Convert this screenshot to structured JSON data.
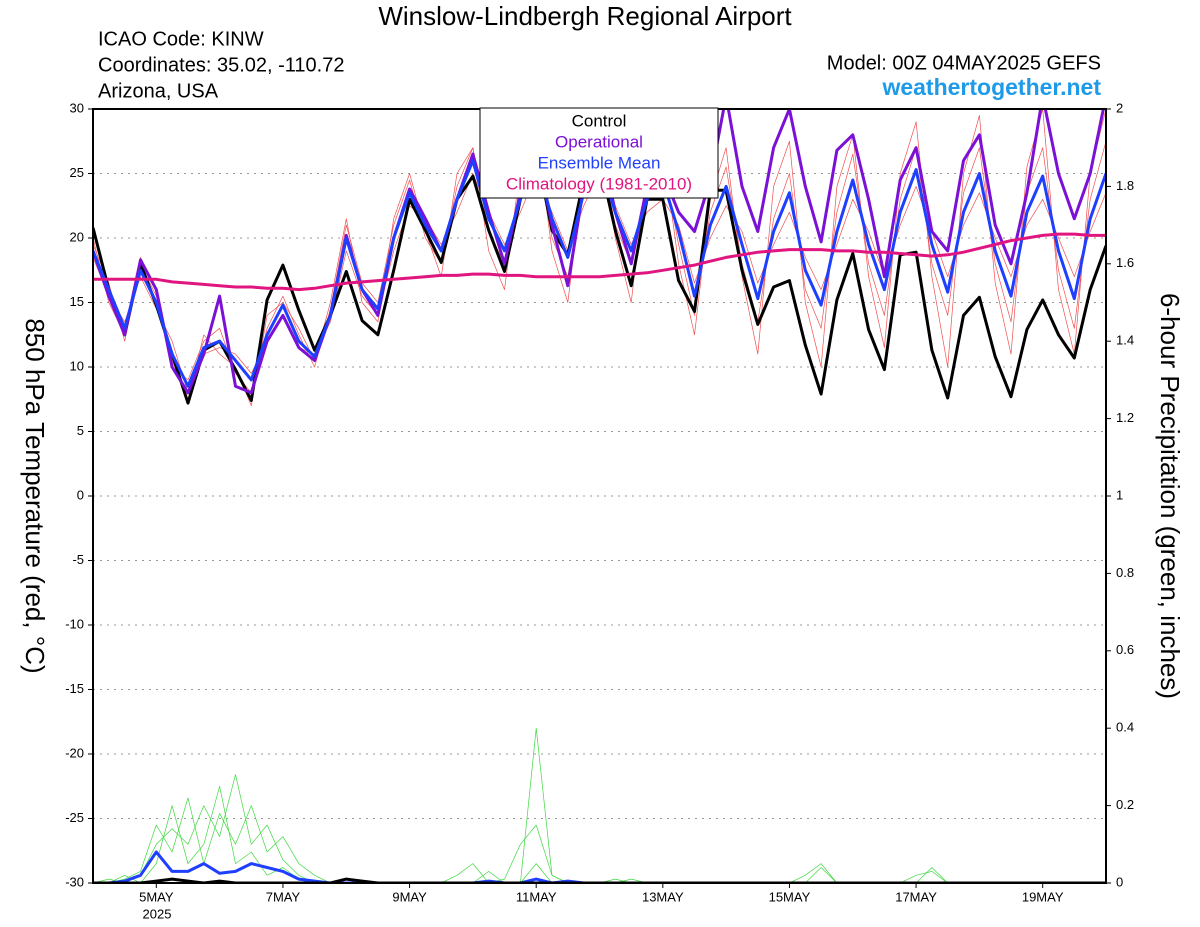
{
  "chart_data": {
    "type": "line",
    "title": "Winslow-Lindbergh Regional Airport",
    "annotations": [
      "ICAO Code: KINW",
      "Coordinates: 35.02, -110.72",
      "Arizona, USA"
    ],
    "model": "Model: 00Z 04MAY2025 GEFS",
    "site": "weathertogether.net",
    "site_color": "#1e9be8",
    "ylabel": "850 hPa Temperature (red, °C)",
    "y2label": "6-hour Precipitation (green, inches)",
    "xlabel_year": "2025",
    "categories": [
      null,
      null,
      null,
      null,
      "5MAY",
      null,
      null,
      null,
      null,
      null,
      null,
      null,
      "7MAY",
      null,
      null,
      null,
      null,
      null,
      null,
      null,
      "9MAY",
      null,
      null,
      null,
      null,
      null,
      null,
      null,
      "11MAY",
      null,
      null,
      null,
      null,
      null,
      null,
      null,
      "13MAY",
      null,
      null,
      null,
      null,
      null,
      null,
      null,
      "15MAY",
      null,
      null,
      null,
      null,
      null,
      null,
      null,
      "17MAY",
      null,
      null,
      null,
      null,
      null,
      null,
      null,
      "19MAY",
      null,
      null,
      null,
      null
    ],
    "ylim": [
      -30,
      30
    ],
    "yticks": [
      -30,
      -25,
      -20,
      -15,
      -10,
      -5,
      0,
      5,
      10,
      15,
      20,
      25,
      30
    ],
    "y2lim": [
      0,
      2
    ],
    "y2ticks": [
      0,
      0.2,
      0.4,
      0.6,
      0.8,
      1,
      1.2,
      1.4,
      1.6,
      1.8,
      2
    ],
    "grid": true,
    "legend": "top",
    "series": [
      {
        "color": "#f05050",
        "linewidth": 0.7,
        "values": [
          19.5,
          16.5,
          12,
          18,
          15.5,
          10,
          9,
          12,
          13,
          9.5,
          8,
          13,
          15.5,
          12.5,
          10,
          14.5,
          21,
          16.5,
          15,
          21,
          24.5,
          20,
          18,
          24,
          27,
          20.5,
          18,
          24,
          27.5,
          20,
          17,
          24,
          27,
          21,
          18,
          24,
          26,
          19.5,
          14,
          22,
          25.5,
          18,
          13.5,
          21.5,
          25,
          16,
          13,
          22,
          26.5,
          18,
          14,
          23,
          27,
          18,
          14,
          23.5,
          27,
          18,
          13.5,
          23.5,
          27,
          17.5,
          13,
          23,
          27.5
        ]
      },
      {
        "color": "#f05050",
        "linewidth": 0.7,
        "values": [
          18.5,
          15.5,
          13.5,
          17,
          14.5,
          12,
          8,
          11,
          11.5,
          11,
          9.5,
          12,
          14,
          11.5,
          11,
          13.5,
          19,
          15.5,
          14,
          19,
          22.5,
          21.5,
          19.5,
          22,
          25,
          22,
          19.5,
          22,
          25,
          22,
          19,
          22.5,
          25,
          22.5,
          19.5,
          22,
          23,
          21,
          16.5,
          20,
          22.5,
          20.5,
          16.5,
          19.5,
          22,
          18.5,
          16,
          19.5,
          23,
          20.5,
          17,
          21,
          24,
          20.5,
          17,
          21,
          23.5,
          20,
          17,
          21,
          23,
          20,
          17,
          20.5,
          23.5
        ]
      },
      {
        "color": "#f05050",
        "linewidth": 0.7,
        "values": [
          20,
          15,
          12.5,
          18.5,
          16,
          10.5,
          7.5,
          12.5,
          11,
          10,
          7,
          14,
          15,
          13,
          10.5,
          15,
          21.5,
          15,
          13.5,
          21.5,
          25,
          20.5,
          17,
          25,
          27,
          19,
          16,
          25.5,
          28.5,
          19,
          15,
          25,
          28.5,
          20,
          15,
          25.5,
          27,
          18,
          12.5,
          23,
          27,
          17,
          11,
          24,
          27.5,
          15,
          10,
          24,
          28,
          17,
          11.5,
          25,
          29,
          17,
          10,
          25,
          29.5,
          16.5,
          11,
          25.5,
          30,
          16,
          11,
          25,
          30
        ]
      },
      {
        "color": "#40d840",
        "linewidth": 0.7,
        "axis": "y2",
        "values": [
          0,
          0,
          0.02,
          0,
          0.05,
          0.2,
          0.05,
          0.1,
          0.25,
          0.05,
          0.08,
          0.02,
          0.04,
          0.01,
          0,
          0,
          0.01,
          0,
          0,
          0,
          0,
          0,
          0,
          0,
          0,
          0.03,
          0,
          0,
          0.4,
          0.02,
          0,
          0,
          0,
          0,
          0.01,
          0,
          0,
          0,
          0,
          0,
          0,
          0,
          0,
          0,
          0,
          0,
          0.04,
          0,
          0,
          0,
          0,
          0,
          0,
          0.04,
          0,
          0,
          0,
          0,
          0,
          0,
          0,
          0,
          0,
          0,
          0
        ]
      },
      {
        "color": "#40d840",
        "linewidth": 0.7,
        "axis": "y2",
        "values": [
          0,
          0.01,
          0,
          0.02,
          0.1,
          0.14,
          0.1,
          0.2,
          0.12,
          0.28,
          0.1,
          0.15,
          0.06,
          0.02,
          0,
          0,
          0,
          0,
          0,
          0,
          0,
          0,
          0,
          0.02,
          0.05,
          0,
          0.01,
          0.1,
          0.15,
          0.02,
          0,
          0,
          0,
          0.01,
          0,
          0,
          0,
          0,
          0,
          0,
          0,
          0,
          0,
          0,
          0,
          0.02,
          0.05,
          0,
          0,
          0,
          0,
          0,
          0,
          0,
          0,
          0,
          0,
          0,
          0,
          0,
          0,
          0,
          0,
          0,
          0
        ]
      },
      {
        "color": "#40d840",
        "linewidth": 0.7,
        "axis": "y2",
        "values": [
          0,
          0,
          0.01,
          0.03,
          0.15,
          0.08,
          0.22,
          0.05,
          0.18,
          0.1,
          0.2,
          0.08,
          0.12,
          0.05,
          0.02,
          0,
          0,
          0,
          0,
          0,
          0,
          0,
          0,
          0,
          0,
          0,
          0,
          0,
          0.05,
          0,
          0,
          0,
          0,
          0,
          0,
          0,
          0,
          0,
          0,
          0,
          0,
          0,
          0,
          0,
          0,
          0,
          0,
          0,
          0,
          0,
          0,
          0,
          0.02,
          0.03,
          0,
          0,
          0,
          0,
          0,
          0,
          0,
          0,
          0,
          0,
          0
        ]
      },
      {
        "name": "Control",
        "color": "#000000",
        "linewidth": 3,
        "values": [
          20.8,
          16,
          12.5,
          18,
          14.8,
          11,
          7.2,
          11.3,
          12,
          9.8,
          7.4,
          15.2,
          17.9,
          14.4,
          11.3,
          14,
          17.4,
          13.6,
          12.5,
          17.5,
          23,
          20.6,
          18.1,
          23,
          24.8,
          20.6,
          17.4,
          23,
          26.8,
          20.6,
          18.7,
          24.5,
          26,
          20.6,
          16.3,
          23,
          23,
          16.7,
          14.3,
          23.7,
          23.7,
          17.5,
          13.3,
          16.2,
          16.7,
          11.7,
          7.9,
          15.2,
          18.8,
          12.9,
          9.8,
          18.7,
          18.9,
          11.3,
          7.6,
          14,
          15.4,
          10.8,
          7.7,
          12.9,
          15.2,
          12.5,
          10.7,
          16,
          19.4
        ]
      },
      {
        "name": "Operational",
        "color": "#7b10d6",
        "linewidth": 3,
        "values": [
          19,
          15.5,
          12.5,
          18.3,
          16,
          10,
          8,
          11,
          15.5,
          8.5,
          8,
          12,
          14,
          11.5,
          10.5,
          14,
          20.2,
          16,
          14,
          20,
          23.8,
          21.5,
          19,
          23,
          26.5,
          22,
          18,
          23.5,
          27,
          21,
          16.3,
          24,
          28,
          22,
          18,
          24,
          25,
          22,
          20.5,
          24.5,
          31,
          24,
          20.5,
          27,
          30,
          24,
          19.7,
          26.8,
          28,
          23,
          17,
          24.5,
          27,
          20.5,
          19,
          26,
          28,
          21,
          18,
          23.5,
          31,
          25,
          21.5,
          25,
          31
        ]
      },
      {
        "name": "Ensemble Mean",
        "color": "#1f3fff",
        "linewidth": 3,
        "values": [
          19,
          16,
          13,
          17.5,
          15,
          11,
          8.5,
          11.5,
          12,
          10.5,
          9,
          12.5,
          14.8,
          12,
          10.8,
          14,
          20,
          16,
          14.5,
          20,
          23.5,
          21,
          19,
          23,
          26,
          21.5,
          19,
          23,
          26,
          21.5,
          18.5,
          23.5,
          26,
          22,
          19,
          23,
          24.5,
          20.5,
          15.5,
          21,
          24,
          19.5,
          15.3,
          20.5,
          23.5,
          17.5,
          14.8,
          20.5,
          24.5,
          19.5,
          16,
          22,
          25.3,
          19.5,
          15.8,
          22,
          25,
          19,
          15.5,
          22,
          24.8,
          19,
          15.3,
          21.5,
          25
        ]
      },
      {
        "name": "Climatology (1981-2010)",
        "color": "#e0157f",
        "linewidth": 3,
        "values": [
          16.8,
          16.8,
          16.8,
          16.8,
          16.8,
          16.6,
          16.5,
          16.4,
          16.3,
          16.2,
          16.2,
          16.1,
          16.1,
          16.0,
          16.1,
          16.3,
          16.5,
          16.6,
          16.7,
          16.8,
          16.9,
          17.0,
          17.1,
          17.1,
          17.2,
          17.2,
          17.1,
          17.1,
          17.0,
          17.0,
          17.0,
          17.0,
          17.0,
          17.1,
          17.2,
          17.3,
          17.5,
          17.7,
          17.9,
          18.2,
          18.5,
          18.7,
          18.9,
          19.0,
          19.1,
          19.1,
          19.1,
          19.0,
          19.0,
          18.9,
          18.9,
          18.8,
          18.7,
          18.6,
          18.7,
          18.9,
          19.2,
          19.5,
          19.8,
          20.0,
          20.2,
          20.3,
          20.3,
          20.2,
          20.2
        ]
      },
      {
        "color": "#1f3fff",
        "linewidth": 3,
        "axis": "y2",
        "values": [
          0,
          0,
          0.005,
          0.02,
          0.08,
          0.03,
          0.03,
          0.05,
          0.025,
          0.03,
          0.05,
          0.04,
          0.03,
          0.01,
          0.005,
          0,
          0,
          0,
          0,
          0,
          0,
          0,
          0,
          0,
          0,
          0.005,
          0,
          0,
          0.01,
          0,
          0.005,
          0,
          0,
          0,
          0,
          0,
          0,
          0,
          0,
          0,
          0,
          0,
          0,
          0,
          0,
          0,
          0,
          0,
          0,
          0,
          0,
          0,
          0,
          0,
          0,
          0,
          0,
          0,
          0,
          0,
          0,
          0,
          0,
          0,
          0
        ]
      },
      {
        "color": "#000000",
        "linewidth": 3,
        "axis": "y2",
        "values": [
          0,
          0,
          0,
          0,
          0.005,
          0.01,
          0.005,
          0,
          0.005,
          0,
          0,
          0,
          0,
          0,
          0,
          0,
          0.01,
          0.005,
          0,
          0,
          0,
          0,
          0,
          0,
          0,
          0,
          0,
          0,
          0,
          0,
          0,
          0,
          0,
          0,
          0,
          0,
          0,
          0,
          0,
          0,
          0,
          0,
          0,
          0,
          0,
          0,
          0,
          0,
          0,
          0,
          0,
          0,
          0,
          0,
          0,
          0,
          0,
          0,
          0,
          0,
          0,
          0,
          0,
          0,
          0
        ]
      }
    ]
  }
}
